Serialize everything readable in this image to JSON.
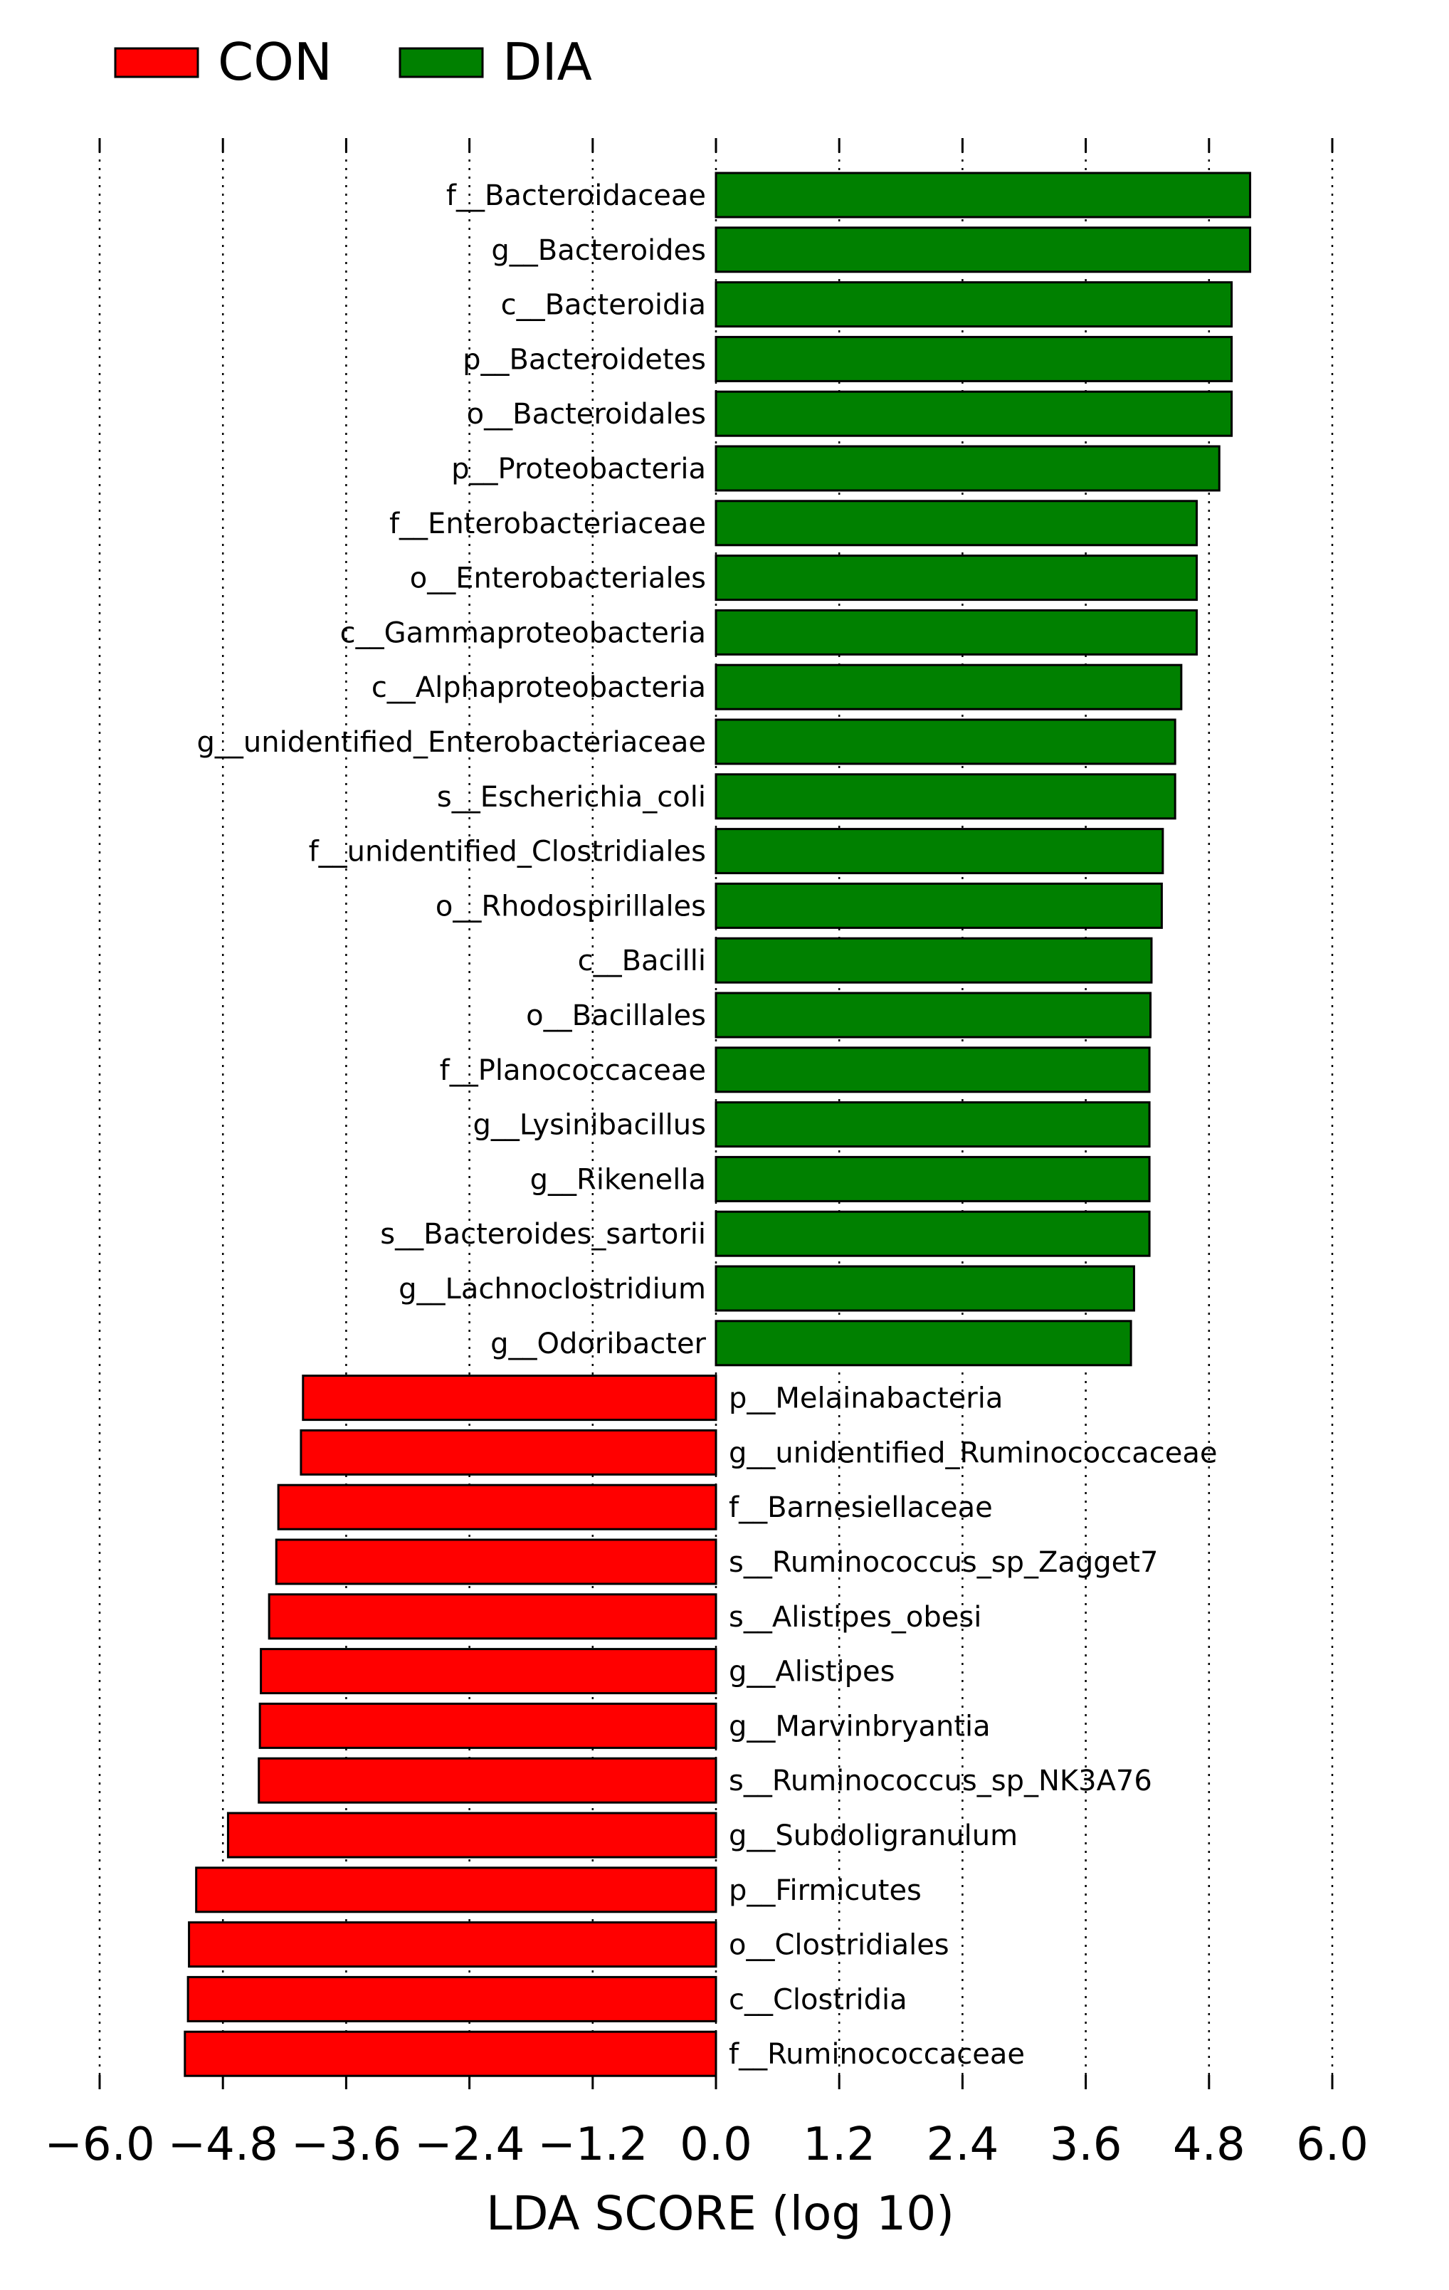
{
  "chart_data": {
    "type": "bar",
    "orientation": "horizontal",
    "xlabel": "LDA SCORE (log 10)",
    "xlim": [
      -6.0,
      6.0
    ],
    "xticks": [
      -6.0,
      -4.8,
      -3.6,
      -2.4,
      -1.2,
      0.0,
      1.2,
      2.4,
      3.6,
      4.8,
      6.0
    ],
    "xtick_labels": [
      "−6.0",
      "−4.8",
      "−3.6",
      "−2.4",
      "−1.2",
      "0.0",
      "1.2",
      "2.4",
      "3.6",
      "4.8",
      "6.0"
    ],
    "grid": "vertical dotted",
    "legend": {
      "placement": "top-left",
      "entries": [
        {
          "label": "CON",
          "color": "#ff0000"
        },
        {
          "label": "DIA",
          "color": "#008000"
        }
      ]
    },
    "series": [
      {
        "name": "DIA",
        "color": "#008000"
      },
      {
        "name": "CON",
        "color": "#ff0000"
      }
    ],
    "bars": [
      {
        "label": "f__Bacteroidaceae",
        "value": 5.2,
        "group": "DIA"
      },
      {
        "label": "g__Bacteroides",
        "value": 5.2,
        "group": "DIA"
      },
      {
        "label": "c__Bacteroidia",
        "value": 5.02,
        "group": "DIA"
      },
      {
        "label": "p__Bacteroidetes",
        "value": 5.02,
        "group": "DIA"
      },
      {
        "label": "o__Bacteroidales",
        "value": 5.02,
        "group": "DIA"
      },
      {
        "label": "p__Proteobacteria",
        "value": 4.9,
        "group": "DIA"
      },
      {
        "label": "f__Enterobacteriaceae",
        "value": 4.68,
        "group": "DIA"
      },
      {
        "label": "o__Enterobacteriales",
        "value": 4.68,
        "group": "DIA"
      },
      {
        "label": "c__Gammaproteobacteria",
        "value": 4.68,
        "group": "DIA"
      },
      {
        "label": "c__Alphaproteobacteria",
        "value": 4.53,
        "group": "DIA"
      },
      {
        "label": "g__unidentified_Enterobacteriaceae",
        "value": 4.47,
        "group": "DIA"
      },
      {
        "label": "s__Escherichia_coli",
        "value": 4.47,
        "group": "DIA"
      },
      {
        "label": "f__unidentified_Clostridiales",
        "value": 4.35,
        "group": "DIA"
      },
      {
        "label": "o__Rhodospirillales",
        "value": 4.34,
        "group": "DIA"
      },
      {
        "label": "c__Bacilli",
        "value": 4.24,
        "group": "DIA"
      },
      {
        "label": "o__Bacillales",
        "value": 4.23,
        "group": "DIA"
      },
      {
        "label": "f__Planococcaceae",
        "value": 4.22,
        "group": "DIA"
      },
      {
        "label": "g__Lysinibacillus",
        "value": 4.22,
        "group": "DIA"
      },
      {
        "label": "g__Rikenella",
        "value": 4.22,
        "group": "DIA"
      },
      {
        "label": "s__Bacteroides_sartorii",
        "value": 4.22,
        "group": "DIA"
      },
      {
        "label": "g__Lachnoclostridium",
        "value": 4.07,
        "group": "DIA"
      },
      {
        "label": "g__Odoribacter",
        "value": 4.04,
        "group": "DIA"
      },
      {
        "label": "p__Melainabacteria",
        "value": -4.02,
        "group": "CON"
      },
      {
        "label": "g__unidentified_Ruminococcaceae",
        "value": -4.04,
        "group": "CON"
      },
      {
        "label": "f__Barnesiellaceae",
        "value": -4.26,
        "group": "CON"
      },
      {
        "label": "s__Ruminococcus_sp_Zagget7",
        "value": -4.28,
        "group": "CON"
      },
      {
        "label": "s__Alistipes_obesi",
        "value": -4.35,
        "group": "CON"
      },
      {
        "label": "g__Alistipes",
        "value": -4.43,
        "group": "CON"
      },
      {
        "label": "g__Marvinbryantia",
        "value": -4.44,
        "group": "CON"
      },
      {
        "label": "s__Ruminococcus_sp_NK3A76",
        "value": -4.45,
        "group": "CON"
      },
      {
        "label": "g__Subdoligranulum",
        "value": -4.75,
        "group": "CON"
      },
      {
        "label": "p__Firmicutes",
        "value": -5.06,
        "group": "CON"
      },
      {
        "label": "o__Clostridiales",
        "value": -5.13,
        "group": "CON"
      },
      {
        "label": "c__Clostridia",
        "value": -5.14,
        "group": "CON"
      },
      {
        "label": "f__Ruminococcaceae",
        "value": -5.17,
        "group": "CON"
      }
    ]
  }
}
